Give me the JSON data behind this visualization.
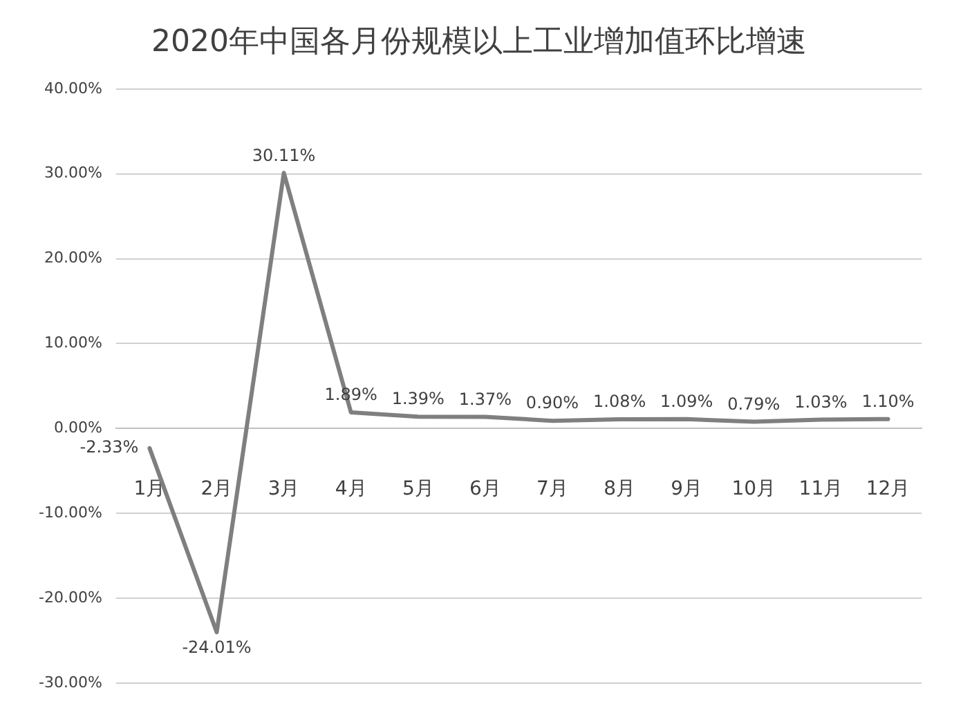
{
  "chart_data": {
    "type": "line",
    "title": "2020年中国各月份规模以上工业增加值环比增速",
    "categories": [
      "1月",
      "2月",
      "3月",
      "4月",
      "5月",
      "6月",
      "7月",
      "8月",
      "9月",
      "10月",
      "11月",
      "12月"
    ],
    "series": [
      {
        "color": "#7f7f7f",
        "values": [
          -2.33,
          -24.01,
          30.11,
          1.89,
          1.39,
          1.37,
          0.9,
          1.08,
          1.09,
          0.79,
          1.03,
          1.1
        ],
        "value_labels": [
          "-2.33%",
          "-24.01%",
          "30.11%",
          "1.89%",
          "1.39%",
          "1.37%",
          "0.90%",
          "1.08%",
          "1.09%",
          "0.79%",
          "1.03%",
          "1.10%"
        ]
      }
    ],
    "ylim": [
      -30,
      40
    ],
    "yticks": [
      {
        "value": -30,
        "label": "-30.00%"
      },
      {
        "value": -20,
        "label": "-20.00%"
      },
      {
        "value": -10,
        "label": "-10.00%"
      },
      {
        "value": 0,
        "label": "0.00%"
      },
      {
        "value": 10,
        "label": "10.00%"
      },
      {
        "value": 20,
        "label": "20.00%"
      },
      {
        "value": 30,
        "label": "30.00%"
      },
      {
        "value": 40,
        "label": "40.00%"
      }
    ],
    "grid": "y",
    "legend": false,
    "marker": "none",
    "line_style": "solid"
  }
}
